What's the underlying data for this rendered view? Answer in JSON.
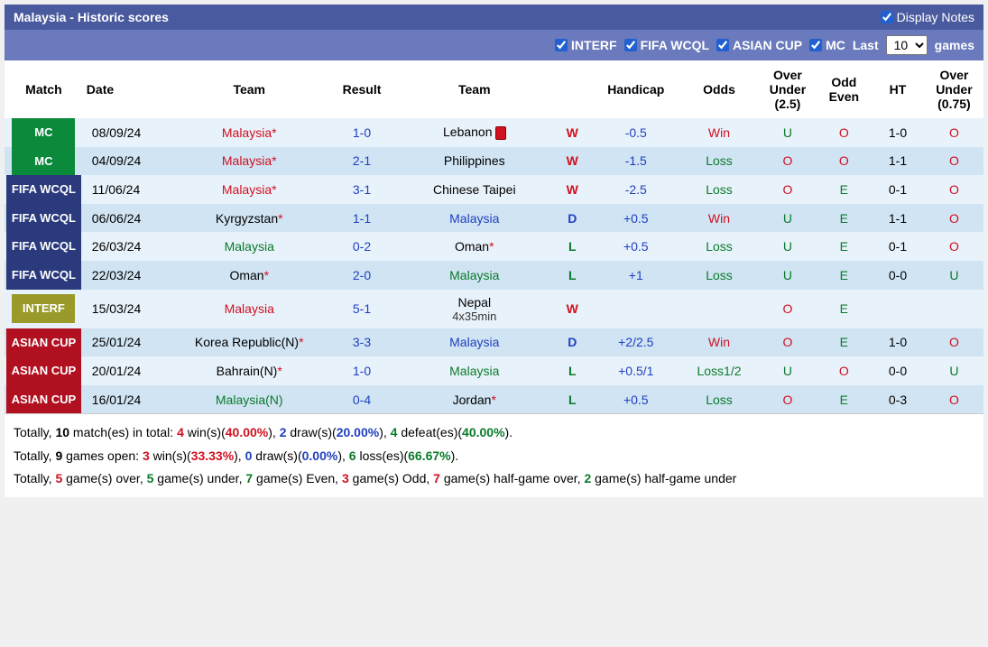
{
  "header": {
    "title": "Malaysia - Historic scores",
    "display_notes": "Display Notes"
  },
  "filters": {
    "interf": "INTERF",
    "fifa": "FIFA WCQL",
    "asian": "ASIAN CUP",
    "mc": "MC",
    "last": "Last",
    "last_value": "10",
    "games": "games"
  },
  "columns": {
    "match": "Match",
    "date": "Date",
    "team1": "Team",
    "result": "Result",
    "team2": "Team",
    "wdl": "",
    "handicap": "Handicap",
    "odds": "Odds",
    "ou25": "Over Under (2.5)",
    "oe": "Odd Even",
    "ht": "HT",
    "ou075": "Over Under (0.75)"
  },
  "rows": [
    {
      "badge": "MC",
      "badge_class": "mc",
      "row_class": "light",
      "date": "08/09/24",
      "team1": "Malaysia*",
      "team1_class": "red",
      "result": "1-0",
      "result_class": "blue",
      "team2": "Lebanon",
      "team2_class": "",
      "team2_extra": "redcard",
      "wdl": "W",
      "wdl_class": "result-w",
      "handicap": "-0.5",
      "handicap_class": "blue",
      "odds": "Win",
      "odds_class": "red",
      "ou25": "U",
      "ou25_class": "o-green",
      "oe": "O",
      "oe_class": "o-red",
      "ht": "1-0",
      "ou075": "O",
      "ou075_class": "o-red"
    },
    {
      "badge": "MC",
      "badge_class": "mc",
      "row_class": "dark",
      "date": "04/09/24",
      "team1": "Malaysia*",
      "team1_class": "red",
      "result": "2-1",
      "result_class": "blue",
      "team2": "Philippines",
      "team2_class": "",
      "wdl": "W",
      "wdl_class": "result-w",
      "handicap": "-1.5",
      "handicap_class": "blue",
      "odds": "Loss",
      "odds_class": "green",
      "ou25": "O",
      "ou25_class": "o-red",
      "oe": "O",
      "oe_class": "o-red",
      "ht": "1-1",
      "ou075": "O",
      "ou075_class": "o-red"
    },
    {
      "badge": "FIFA WCQL",
      "badge_class": "fifa",
      "row_class": "light",
      "date": "11/06/24",
      "team1": "Malaysia*",
      "team1_class": "red",
      "result": "3-1",
      "result_class": "blue",
      "team2": "Chinese Taipei",
      "team2_class": "",
      "wdl": "W",
      "wdl_class": "result-w",
      "handicap": "-2.5",
      "handicap_class": "blue",
      "odds": "Loss",
      "odds_class": "green",
      "ou25": "O",
      "ou25_class": "o-red",
      "oe": "E",
      "oe_class": "o-green",
      "ht": "0-1",
      "ou075": "O",
      "ou075_class": "o-red"
    },
    {
      "badge": "FIFA WCQL",
      "badge_class": "fifa",
      "row_class": "dark",
      "date": "06/06/24",
      "team1": "Kyrgyzstan*",
      "team1_class": "",
      "team1_star": "red",
      "result": "1-1",
      "result_class": "blue",
      "team2": "Malaysia",
      "team2_class": "blue",
      "wdl": "D",
      "wdl_class": "result-d",
      "handicap": "+0.5",
      "handicap_class": "blue",
      "odds": "Win",
      "odds_class": "red",
      "ou25": "U",
      "ou25_class": "o-green",
      "oe": "E",
      "oe_class": "o-green",
      "ht": "1-1",
      "ou075": "O",
      "ou075_class": "o-red"
    },
    {
      "badge": "FIFA WCQL",
      "badge_class": "fifa",
      "row_class": "light",
      "date": "26/03/24",
      "team1": "Malaysia",
      "team1_class": "green",
      "result": "0-2",
      "result_class": "blue",
      "team2": "Oman*",
      "team2_class": "",
      "team2_star": "red",
      "wdl": "L",
      "wdl_class": "result-l",
      "handicap": "+0.5",
      "handicap_class": "blue",
      "odds": "Loss",
      "odds_class": "green",
      "ou25": "U",
      "ou25_class": "o-green",
      "oe": "E",
      "oe_class": "o-green",
      "ht": "0-1",
      "ou075": "O",
      "ou075_class": "o-red"
    },
    {
      "badge": "FIFA WCQL",
      "badge_class": "fifa",
      "row_class": "dark",
      "date": "22/03/24",
      "team1": "Oman*",
      "team1_class": "",
      "team1_star": "red",
      "result": "2-0",
      "result_class": "blue",
      "team2": "Malaysia",
      "team2_class": "green",
      "wdl": "L",
      "wdl_class": "result-l",
      "handicap": "+1",
      "handicap_class": "blue",
      "odds": "Loss",
      "odds_class": "green",
      "ou25": "U",
      "ou25_class": "o-green",
      "oe": "E",
      "oe_class": "o-green",
      "ht": "0-0",
      "ou075": "U",
      "ou075_class": "o-green"
    },
    {
      "badge": "INTERF",
      "badge_class": "interf",
      "row_class": "light",
      "date": "15/03/24",
      "team1": "Malaysia",
      "team1_class": "red",
      "result": "5-1",
      "result_class": "blue",
      "team2": "Nepal",
      "team2_class": "",
      "team2_sub": "4x35min",
      "wdl": "W",
      "wdl_class": "result-w",
      "handicap": "",
      "odds": "",
      "ou25": "O",
      "ou25_class": "o-red",
      "oe": "E",
      "oe_class": "o-green",
      "ht": "",
      "ou075": ""
    },
    {
      "badge": "ASIAN CUP",
      "badge_class": "asian",
      "row_class": "dark",
      "date": "25/01/24",
      "team1": "Korea Republic(N)*",
      "team1_class": "",
      "team1_star": "red",
      "result": "3-3",
      "result_class": "blue",
      "team2": "Malaysia",
      "team2_class": "blue",
      "wdl": "D",
      "wdl_class": "result-d",
      "handicap": "+2/2.5",
      "handicap_class": "blue",
      "odds": "Win",
      "odds_class": "red",
      "ou25": "O",
      "ou25_class": "o-red",
      "oe": "E",
      "oe_class": "o-green",
      "ht": "1-0",
      "ou075": "O",
      "ou075_class": "o-red"
    },
    {
      "badge": "ASIAN CUP",
      "badge_class": "asian",
      "row_class": "light",
      "date": "20/01/24",
      "team1": "Bahrain(N)*",
      "team1_class": "",
      "team1_star": "red",
      "result": "1-0",
      "result_class": "blue",
      "team2": "Malaysia",
      "team2_class": "green",
      "wdl": "L",
      "wdl_class": "result-l",
      "handicap": "+0.5/1",
      "handicap_class": "blue",
      "odds": "Loss1/2",
      "odds_class": "green",
      "ou25": "U",
      "ou25_class": "o-green",
      "oe": "O",
      "oe_class": "o-red",
      "ht": "0-0",
      "ou075": "U",
      "ou075_class": "o-green"
    },
    {
      "badge": "ASIAN CUP",
      "badge_class": "asian",
      "row_class": "dark",
      "date": "16/01/24",
      "team1": "Malaysia(N)",
      "team1_class": "green",
      "result": "0-4",
      "result_class": "blue",
      "team2": "Jordan*",
      "team2_class": "",
      "team2_star": "red",
      "wdl": "L",
      "wdl_class": "result-l",
      "handicap": "+0.5",
      "handicap_class": "blue",
      "odds": "Loss",
      "odds_class": "green",
      "ou25": "O",
      "ou25_class": "o-red",
      "oe": "E",
      "oe_class": "o-green",
      "ht": "0-3",
      "ou075": "O",
      "ou075_class": "o-red"
    }
  ],
  "summary": {
    "line1_a": "Totally, ",
    "line1_b": "10",
    "line1_c": " match(es) in total: ",
    "line1_d": "4",
    "line1_e": " win(s)(",
    "line1_f": "40.00%",
    "line1_g": "), ",
    "line1_h": "2",
    "line1_i": " draw(s)(",
    "line1_j": "20.00%",
    "line1_k": "), ",
    "line1_l": "4",
    "line1_m": " defeat(es)(",
    "line1_n": "40.00%",
    "line1_o": ").",
    "line2_a": "Totally, ",
    "line2_b": "9",
    "line2_c": " games open: ",
    "line2_d": "3",
    "line2_e": " win(s)(",
    "line2_f": "33.33%",
    "line2_g": "), ",
    "line2_h": "0",
    "line2_i": " draw(s)(",
    "line2_j": "0.00%",
    "line2_k": "), ",
    "line2_l": "6",
    "line2_m": " loss(es)(",
    "line2_n": "66.67%",
    "line2_o": ").",
    "line3_a": "Totally, ",
    "line3_b": "5",
    "line3_c": " game(s) over, ",
    "line3_d": "5",
    "line3_e": " game(s) under, ",
    "line3_f": "7",
    "line3_g": " game(s) Even, ",
    "line3_h": "3",
    "line3_i": " game(s) Odd, ",
    "line3_j": "7",
    "line3_k": " game(s) half-game over, ",
    "line3_l": "2",
    "line3_m": " game(s) half-game under"
  }
}
